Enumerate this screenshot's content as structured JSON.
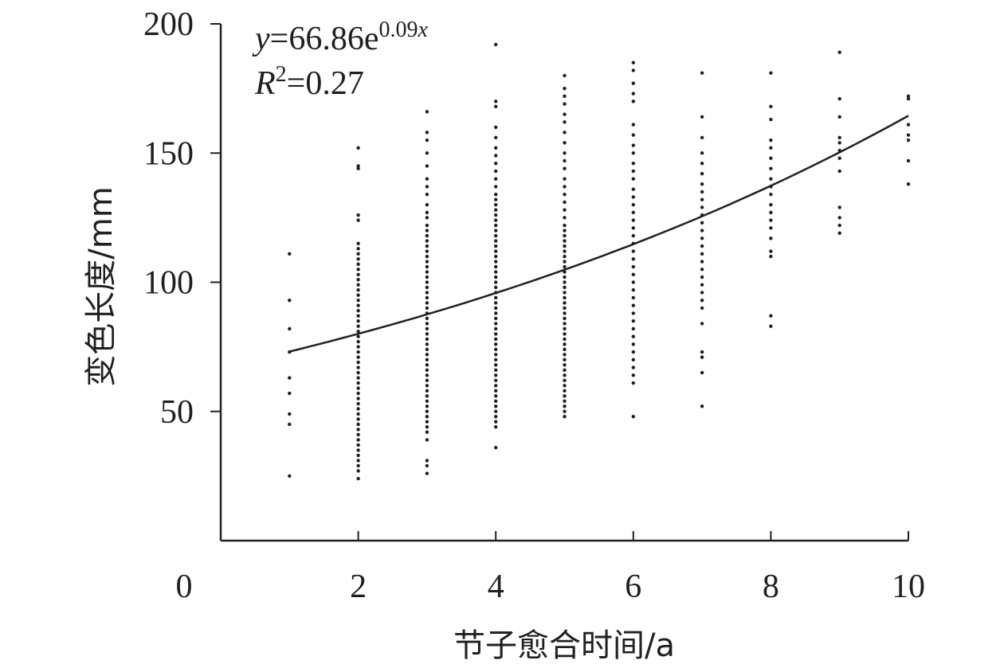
{
  "chart_data": {
    "type": "scatter",
    "xlabel": "节子愈合时间/a",
    "ylabel": "变色长度/mm",
    "xlim": [
      0,
      10
    ],
    "ylim": [
      0,
      200
    ],
    "x_ticks": [
      0,
      2,
      4,
      6,
      8,
      10
    ],
    "y_ticks": [
      50,
      100,
      150,
      200
    ],
    "grid": false,
    "annotation": {
      "equation": {
        "y": "y",
        "mid": "=66.86e",
        "sup": "0.09",
        "supx": "x"
      },
      "r2": {
        "R": "R",
        "sup": "2",
        "val": "=0.27"
      }
    },
    "fit": {
      "a": 66.86,
      "b": 0.09,
      "x_range": [
        1,
        10
      ]
    },
    "series": [
      {
        "groups": [
          {
            "x": 1,
            "y": [
              111,
              93,
              82,
              73,
              63,
              57,
              49,
              45,
              25
            ]
          },
          {
            "x": 2,
            "y": [
              152,
              145,
              144,
              126,
              124,
              115,
              113,
              111,
              109,
              107,
              105,
              103,
              101,
              99,
              97,
              95,
              93,
              91,
              89,
              87,
              85,
              83,
              81,
              79,
              77,
              75,
              73,
              71,
              69,
              67,
              65,
              63,
              61,
              59,
              57,
              55,
              53,
              51,
              49,
              47,
              45,
              43,
              41,
              39,
              37,
              35,
              33,
              31,
              29,
              27,
              24
            ]
          },
          {
            "x": 3,
            "y": [
              166,
              158,
              155,
              150,
              145,
              140,
              137,
              134,
              130,
              127,
              125,
              122,
              120,
              118,
              116,
              114,
              112,
              110,
              108,
              106,
              104,
              102,
              100,
              98,
              96,
              94,
              92,
              90,
              88,
              86,
              84,
              82,
              80,
              78,
              76,
              74,
              72,
              70,
              68,
              66,
              64,
              62,
              60,
              58,
              56,
              54,
              52,
              50,
              48,
              46,
              44,
              42,
              39,
              31,
              29,
              26
            ]
          },
          {
            "x": 4,
            "y": [
              192,
              170,
              168,
              160,
              156,
              152,
              149,
              146,
              143,
              140,
              137,
              134,
              132,
              130,
              128,
              126,
              124,
              122,
              120,
              118,
              116,
              114,
              112,
              110,
              108,
              106,
              104,
              102,
              100,
              98,
              96,
              94,
              92,
              90,
              88,
              86,
              84,
              82,
              80,
              78,
              76,
              74,
              72,
              70,
              68,
              66,
              64,
              62,
              60,
              58,
              56,
              54,
              52,
              50,
              48,
              46,
              44,
              36
            ]
          },
          {
            "x": 5,
            "y": [
              180,
              175,
              172,
              169,
              165,
              162,
              158,
              154,
              150,
              147,
              144,
              140,
              137,
              134,
              131,
              128,
              125,
              122,
              120,
              118,
              116,
              114,
              112,
              110,
              108,
              106,
              104,
              102,
              100,
              98,
              96,
              94,
              92,
              90,
              88,
              86,
              84,
              82,
              80,
              78,
              76,
              74,
              72,
              70,
              68,
              66,
              64,
              62,
              60,
              58,
              56,
              54,
              52,
              50,
              48
            ]
          },
          {
            "x": 6,
            "y": [
              185,
              182,
              177,
              173,
              170,
              161,
              157,
              153,
              150,
              146,
              143,
              140,
              136,
              133,
              130,
              127,
              124,
              121,
              118,
              115,
              112,
              109,
              106,
              103,
              100,
              97,
              94,
              91,
              88,
              85,
              82,
              79,
              76,
              73,
              70,
              67,
              64,
              61,
              48
            ]
          },
          {
            "x": 7,
            "y": [
              181,
              164,
              156,
              150,
              146,
              142,
              138,
              135,
              132,
              129,
              126,
              123,
              120,
              117,
              114,
              111,
              108,
              105,
              102,
              99,
              96,
              93,
              90,
              84,
              73,
              71,
              65,
              52
            ]
          },
          {
            "x": 8,
            "y": [
              181,
              168,
              163,
              155,
              152,
              148,
              144,
              140,
              137,
              134,
              130,
              127,
              124,
              121,
              117,
              112,
              110,
              87,
              83
            ]
          },
          {
            "x": 9,
            "y": [
              189,
              171,
              164,
              156,
              154,
              151,
              148,
              143,
              129,
              125,
              122,
              119
            ]
          },
          {
            "x": 10,
            "y": [
              172,
              171,
              161,
              157,
              155,
              147,
              138
            ]
          }
        ]
      }
    ]
  }
}
